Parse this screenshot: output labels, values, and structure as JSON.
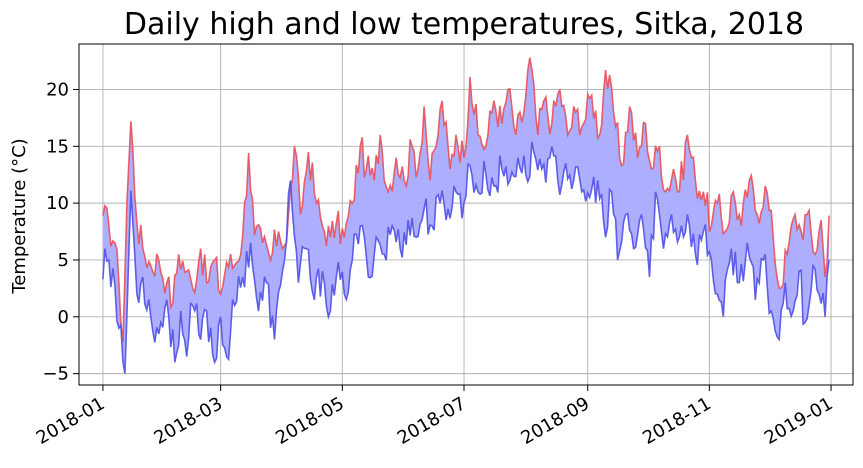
{
  "chart_data": {
    "type": "line",
    "title": "Daily high and low temperatures, Sitka, 2018",
    "xlabel": "",
    "ylabel": "Temperature (°C)",
    "ylim": [
      -6,
      24
    ],
    "xlim": [
      "2017-12-20",
      "2019-01-12"
    ],
    "grid": true,
    "legend": "none",
    "x_ticks": [
      "2018-01",
      "2018-03",
      "2018-05",
      "2018-07",
      "2018-09",
      "2018-11",
      "2019-01"
    ],
    "y_ticks": [
      -5,
      0,
      5,
      10,
      15,
      20
    ],
    "fill_between": {
      "color": "#aaaaff",
      "between": [
        "highs",
        "lows"
      ]
    },
    "series": [
      {
        "key": "highs",
        "color": "#e8505a",
        "points": [
          [
            "2018-01-01",
            8.9
          ],
          [
            "2018-01-04",
            8.0
          ],
          [
            "2018-01-07",
            6.5
          ],
          [
            "2018-01-09",
            3.0
          ],
          [
            "2018-01-11",
            -2.2
          ],
          [
            "2018-01-13",
            10.0
          ],
          [
            "2018-01-15",
            17.2
          ],
          [
            "2018-01-18",
            8.3
          ],
          [
            "2018-01-21",
            6.0
          ],
          [
            "2018-01-25",
            4.5
          ],
          [
            "2018-01-29",
            5.0
          ],
          [
            "2018-02-02",
            3.0
          ],
          [
            "2018-02-05",
            1.2
          ],
          [
            "2018-02-08",
            5.5
          ],
          [
            "2018-02-12",
            4.0
          ],
          [
            "2018-02-15",
            2.5
          ],
          [
            "2018-02-19",
            6.0
          ],
          [
            "2018-02-22",
            3.0
          ],
          [
            "2018-02-26",
            5.0
          ],
          [
            "2018-03-01",
            2.0
          ],
          [
            "2018-03-04",
            4.8
          ],
          [
            "2018-03-08",
            4.5
          ],
          [
            "2018-03-12",
            7.0
          ],
          [
            "2018-03-15",
            14.4
          ],
          [
            "2018-03-18",
            7.2
          ],
          [
            "2018-03-22",
            6.5
          ],
          [
            "2018-03-26",
            5.0
          ],
          [
            "2018-03-30",
            7.5
          ],
          [
            "2018-04-03",
            6.5
          ],
          [
            "2018-04-07",
            15.0
          ],
          [
            "2018-04-10",
            9.0
          ],
          [
            "2018-04-14",
            14.5
          ],
          [
            "2018-04-18",
            10.0
          ],
          [
            "2018-04-21",
            8.0
          ],
          [
            "2018-04-25",
            7.0
          ],
          [
            "2018-04-28",
            8.2
          ],
          [
            "2018-05-02",
            7.0
          ],
          [
            "2018-05-06",
            10.0
          ],
          [
            "2018-05-10",
            15.0
          ],
          [
            "2018-05-13",
            13.0
          ],
          [
            "2018-05-17",
            12.0
          ],
          [
            "2018-05-20",
            16.0
          ],
          [
            "2018-05-24",
            11.0
          ],
          [
            "2018-05-28",
            14.0
          ],
          [
            "2018-06-01",
            12.0
          ],
          [
            "2018-06-05",
            15.0
          ],
          [
            "2018-06-08",
            13.0
          ],
          [
            "2018-06-11",
            18.5
          ],
          [
            "2018-06-14",
            12.0
          ],
          [
            "2018-06-17",
            15.0
          ],
          [
            "2018-06-20",
            19.0
          ],
          [
            "2018-06-24",
            13.0
          ],
          [
            "2018-06-27",
            16.0
          ],
          [
            "2018-07-01",
            14.0
          ],
          [
            "2018-07-04",
            21.1
          ],
          [
            "2018-07-08",
            16.0
          ],
          [
            "2018-07-12",
            15.0
          ],
          [
            "2018-07-16",
            19.0
          ],
          [
            "2018-07-20",
            17.0
          ],
          [
            "2018-07-23",
            20.0
          ],
          [
            "2018-07-27",
            16.0
          ],
          [
            "2018-07-31",
            18.0
          ],
          [
            "2018-08-03",
            22.8
          ],
          [
            "2018-08-07",
            16.0
          ],
          [
            "2018-08-10",
            19.0
          ],
          [
            "2018-08-14",
            17.0
          ],
          [
            "2018-08-18",
            20.0
          ],
          [
            "2018-08-22",
            16.0
          ],
          [
            "2018-08-26",
            18.0
          ],
          [
            "2018-08-30",
            17.0
          ],
          [
            "2018-09-03",
            19.5
          ],
          [
            "2018-09-07",
            16.0
          ],
          [
            "2018-09-10",
            21.7
          ],
          [
            "2018-09-14",
            18.0
          ],
          [
            "2018-09-18",
            13.3
          ],
          [
            "2018-09-22",
            18.5
          ],
          [
            "2018-09-26",
            14.0
          ],
          [
            "2018-09-30",
            17.0
          ],
          [
            "2018-10-03",
            13.0
          ],
          [
            "2018-10-07",
            15.0
          ],
          [
            "2018-10-10",
            11.0
          ],
          [
            "2018-10-14",
            13.0
          ],
          [
            "2018-10-17",
            11.0
          ],
          [
            "2018-10-21",
            16.0
          ],
          [
            "2018-10-25",
            12.0
          ],
          [
            "2018-10-29",
            11.0
          ],
          [
            "2018-11-02",
            8.0
          ],
          [
            "2018-11-05",
            10.0
          ],
          [
            "2018-11-09",
            7.5
          ],
          [
            "2018-11-13",
            11.0
          ],
          [
            "2018-11-17",
            8.0
          ],
          [
            "2018-11-21",
            12.0
          ],
          [
            "2018-11-25",
            9.0
          ],
          [
            "2018-11-29",
            11.5
          ],
          [
            "2018-12-03",
            7.0
          ],
          [
            "2018-12-06",
            2.5
          ],
          [
            "2018-12-10",
            5.5
          ],
          [
            "2018-12-14",
            9.0
          ],
          [
            "2018-12-17",
            7.5
          ],
          [
            "2018-12-20",
            9.0
          ],
          [
            "2018-12-24",
            5.5
          ],
          [
            "2018-12-27",
            8.5
          ],
          [
            "2018-12-29",
            3.5
          ],
          [
            "2018-12-31",
            8.9
          ]
        ]
      },
      {
        "key": "lows",
        "color": "#5050e8",
        "points": [
          [
            "2018-01-01",
            3.3
          ],
          [
            "2018-01-02",
            6.0
          ],
          [
            "2018-01-04",
            5.0
          ],
          [
            "2018-01-07",
            2.8
          ],
          [
            "2018-01-09",
            -1.0
          ],
          [
            "2018-01-12",
            -5.0
          ],
          [
            "2018-01-15",
            11.1
          ],
          [
            "2018-01-18",
            2.0
          ],
          [
            "2018-01-21",
            3.5
          ],
          [
            "2018-01-25",
            0.0
          ],
          [
            "2018-01-29",
            -1.5
          ],
          [
            "2018-02-02",
            1.5
          ],
          [
            "2018-02-06",
            -4.0
          ],
          [
            "2018-02-09",
            0.5
          ],
          [
            "2018-02-12",
            -3.5
          ],
          [
            "2018-02-15",
            1.0
          ],
          [
            "2018-02-19",
            -2.0
          ],
          [
            "2018-02-22",
            0.5
          ],
          [
            "2018-02-26",
            -4.0
          ],
          [
            "2018-03-01",
            0.0
          ],
          [
            "2018-03-04",
            -3.5
          ],
          [
            "2018-03-08",
            1.0
          ],
          [
            "2018-03-12",
            3.5
          ],
          [
            "2018-03-16",
            6.5
          ],
          [
            "2018-03-20",
            0.5
          ],
          [
            "2018-03-24",
            3.0
          ],
          [
            "2018-03-28",
            -2.0
          ],
          [
            "2018-04-01",
            4.0
          ],
          [
            "2018-04-05",
            12.0
          ],
          [
            "2018-04-09",
            3.0
          ],
          [
            "2018-04-13",
            6.0
          ],
          [
            "2018-04-17",
            1.5
          ],
          [
            "2018-04-21",
            4.0
          ],
          [
            "2018-04-25",
            0.5
          ],
          [
            "2018-04-28",
            3.5
          ],
          [
            "2018-05-02",
            2.0
          ],
          [
            "2018-05-06",
            5.0
          ],
          [
            "2018-05-10",
            8.0
          ],
          [
            "2018-05-14",
            3.5
          ],
          [
            "2018-05-18",
            7.0
          ],
          [
            "2018-05-22",
            5.5
          ],
          [
            "2018-05-26",
            8.0
          ],
          [
            "2018-05-30",
            6.0
          ],
          [
            "2018-06-03",
            8.5
          ],
          [
            "2018-06-07",
            7.0
          ],
          [
            "2018-06-11",
            9.5
          ],
          [
            "2018-06-15",
            8.0
          ],
          [
            "2018-06-19",
            10.0
          ],
          [
            "2018-06-23",
            9.5
          ],
          [
            "2018-06-27",
            11.0
          ],
          [
            "2018-07-01",
            10.0
          ],
          [
            "2018-07-04",
            13.3
          ],
          [
            "2018-07-08",
            11.0
          ],
          [
            "2018-07-12",
            12.5
          ],
          [
            "2018-07-16",
            11.5
          ],
          [
            "2018-07-20",
            13.0
          ],
          [
            "2018-07-24",
            12.0
          ],
          [
            "2018-07-28",
            14.0
          ],
          [
            "2018-08-01",
            12.5
          ],
          [
            "2018-08-05",
            14.5
          ],
          [
            "2018-08-09",
            13.0
          ],
          [
            "2018-08-13",
            14.0
          ],
          [
            "2018-08-17",
            12.0
          ],
          [
            "2018-08-21",
            13.5
          ],
          [
            "2018-08-25",
            12.0
          ],
          [
            "2018-08-29",
            11.0
          ],
          [
            "2018-09-02",
            10.5
          ],
          [
            "2018-09-06",
            12.0
          ],
          [
            "2018-09-10",
            7.0
          ],
          [
            "2018-09-13",
            11.0
          ],
          [
            "2018-09-16",
            5.0
          ],
          [
            "2018-09-20",
            9.0
          ],
          [
            "2018-09-24",
            6.0
          ],
          [
            "2018-09-28",
            9.0
          ],
          [
            "2018-10-02",
            3.5
          ],
          [
            "2018-10-05",
            11.0
          ],
          [
            "2018-10-09",
            6.0
          ],
          [
            "2018-10-13",
            9.0
          ],
          [
            "2018-10-17",
            7.0
          ],
          [
            "2018-10-21",
            9.0
          ],
          [
            "2018-10-25",
            5.5
          ],
          [
            "2018-10-29",
            7.5
          ],
          [
            "2018-11-02",
            5.0
          ],
          [
            "2018-11-05",
            2.0
          ],
          [
            "2018-11-08",
            0.0
          ],
          [
            "2018-11-12",
            6.0
          ],
          [
            "2018-11-16",
            3.0
          ],
          [
            "2018-11-20",
            6.5
          ],
          [
            "2018-11-24",
            1.5
          ],
          [
            "2018-11-28",
            5.0
          ],
          [
            "2018-12-02",
            0.5
          ],
          [
            "2018-12-06",
            -2.0
          ],
          [
            "2018-12-09",
            3.0
          ],
          [
            "2018-12-13",
            0.5
          ],
          [
            "2018-12-16",
            4.0
          ],
          [
            "2018-12-19",
            -0.5
          ],
          [
            "2018-12-23",
            4.5
          ],
          [
            "2018-12-26",
            2.0
          ],
          [
            "2018-12-29",
            0.0
          ],
          [
            "2018-12-31",
            5.0
          ]
        ]
      }
    ]
  }
}
